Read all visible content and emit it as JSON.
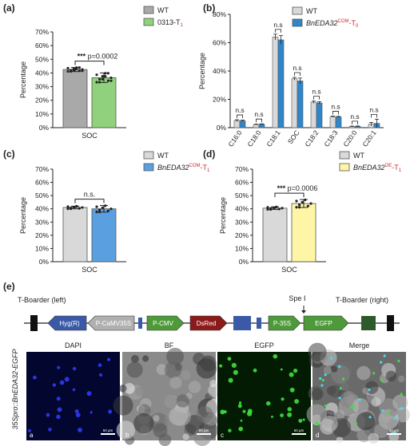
{
  "panels": {
    "a": "(a)",
    "b": "(b)",
    "c": "(c)",
    "d": "(d)",
    "e": "(e)"
  },
  "ytick_labels": [
    "0%",
    "10%",
    "20%",
    "30%",
    "40%",
    "50%",
    "60%",
    "70%"
  ],
  "ytick_labels_b": [
    "0%",
    "20%",
    "40%",
    "60%",
    "80%"
  ],
  "colors": {
    "wt_gray": "#a9a9a9",
    "green_0313": "#8fd17c",
    "wt_light": "#d9d9d9",
    "blue": "#2f86c9",
    "blue_c": "#5aa0e0",
    "yellow": "#fff5a6",
    "text_red": "#d7262b"
  },
  "chart_data": [
    {
      "id": "a",
      "type": "bar",
      "ylabel": "Percentage",
      "ylim": [
        0,
        70
      ],
      "categories": [
        "SOC"
      ],
      "series": [
        {
          "name": "WT",
          "values": [
            42.5
          ],
          "err": [
            1.5
          ],
          "color": "#a9a9a9"
        },
        {
          "name": "0313-T",
          "name_sub": "1",
          "values": [
            36.5
          ],
          "err": [
            3.5
          ],
          "color": "#8fd17c"
        }
      ],
      "annotation": {
        "stars": "***",
        "text": "p=0.0002"
      }
    },
    {
      "id": "b",
      "type": "bar",
      "ylabel": "Percentage",
      "ylim": [
        0,
        80
      ],
      "categories": [
        "C16:0",
        "C18:0",
        "C18:1",
        "SOC",
        "C18:2",
        "C18:3",
        "C20:0",
        "C20:1"
      ],
      "series": [
        {
          "name": "WT",
          "values": [
            5,
            2.2,
            64,
            34.5,
            18,
            7.8,
            0.8,
            2.5
          ],
          "err": [
            0.6,
            0.3,
            2,
            1,
            0.8,
            0.4,
            0.3,
            1.2
          ],
          "color": "#d9d9d9"
        },
        {
          "name": "BnEDA32",
          "name_sup": "COM",
          "name_suffix": "-T",
          "name_sub": "0",
          "values": [
            4.8,
            2.4,
            62,
            33,
            17.5,
            7.6,
            0.9,
            3
          ],
          "err": [
            0.5,
            0.3,
            3,
            2,
            0.8,
            0.4,
            0.3,
            3
          ],
          "color": "#2f86c9"
        }
      ],
      "annotations": [
        "n.s",
        "n.s",
        "n.s",
        "n.s",
        "n.s",
        "n.s",
        "n.s",
        "n.s"
      ]
    },
    {
      "id": "c",
      "type": "bar",
      "ylabel": "Percentage",
      "ylim": [
        0,
        70
      ],
      "categories": [
        "SOC"
      ],
      "series": [
        {
          "name": "WT",
          "values": [
            41
          ],
          "err": [
            1
          ],
          "color": "#d9d9d9"
        },
        {
          "name": "BnEDA32",
          "name_sup": "COM",
          "name_suffix": "-T",
          "name_sub": "1",
          "values": [
            40
          ],
          "err": [
            2.5
          ],
          "color": "#5aa0e0"
        }
      ],
      "annotation": {
        "stars": "",
        "text": "n.s."
      }
    },
    {
      "id": "d",
      "type": "bar",
      "ylabel": "Percentage",
      "ylim": [
        0,
        70
      ],
      "categories": [
        "SOC"
      ],
      "series": [
        {
          "name": "WT",
          "values": [
            40.5
          ],
          "err": [
            1
          ],
          "color": "#d9d9d9"
        },
        {
          "name": "BnEDA32",
          "name_sup": "OE",
          "name_suffix": "-T",
          "name_sub": "1",
          "values": [
            44
          ],
          "err": [
            3
          ],
          "color": "#fff5a6"
        }
      ],
      "annotation": {
        "stars": "***",
        "text": "p=0.0006"
      }
    }
  ],
  "construct": {
    "left_border": "T-Boarder (left)",
    "right_border": "T-Boarder (right)",
    "spe": "Spe Ⅰ",
    "elements": [
      {
        "label": "Hyg(R)",
        "color": "#3a5aa8",
        "dir": "left"
      },
      {
        "label": "P-CaMV35S",
        "color": "#b0b0b0",
        "dir": "left"
      },
      {
        "label": "P-CMV",
        "color": "#4e9a3a",
        "dir": "right"
      },
      {
        "label": "DsRed",
        "color": "#8b1a1a",
        "dir": "right"
      },
      {
        "label": "P-35S",
        "color": "#4e9a3a",
        "dir": "right"
      },
      {
        "label": "EGFP",
        "color": "#4e9a3a",
        "dir": "right"
      }
    ]
  },
  "microscopy": {
    "side_label": "35Spro::BnEDA32-EGFP",
    "images": [
      {
        "title": "DAPI",
        "letter": "a",
        "scale": "50 μm"
      },
      {
        "title": "BF",
        "letter": "b",
        "scale": "50 μm"
      },
      {
        "title": "EGFP",
        "letter": "c",
        "scale": "50 μm"
      },
      {
        "title": "Merge",
        "letter": "d",
        "scale": "50 μm"
      }
    ]
  }
}
